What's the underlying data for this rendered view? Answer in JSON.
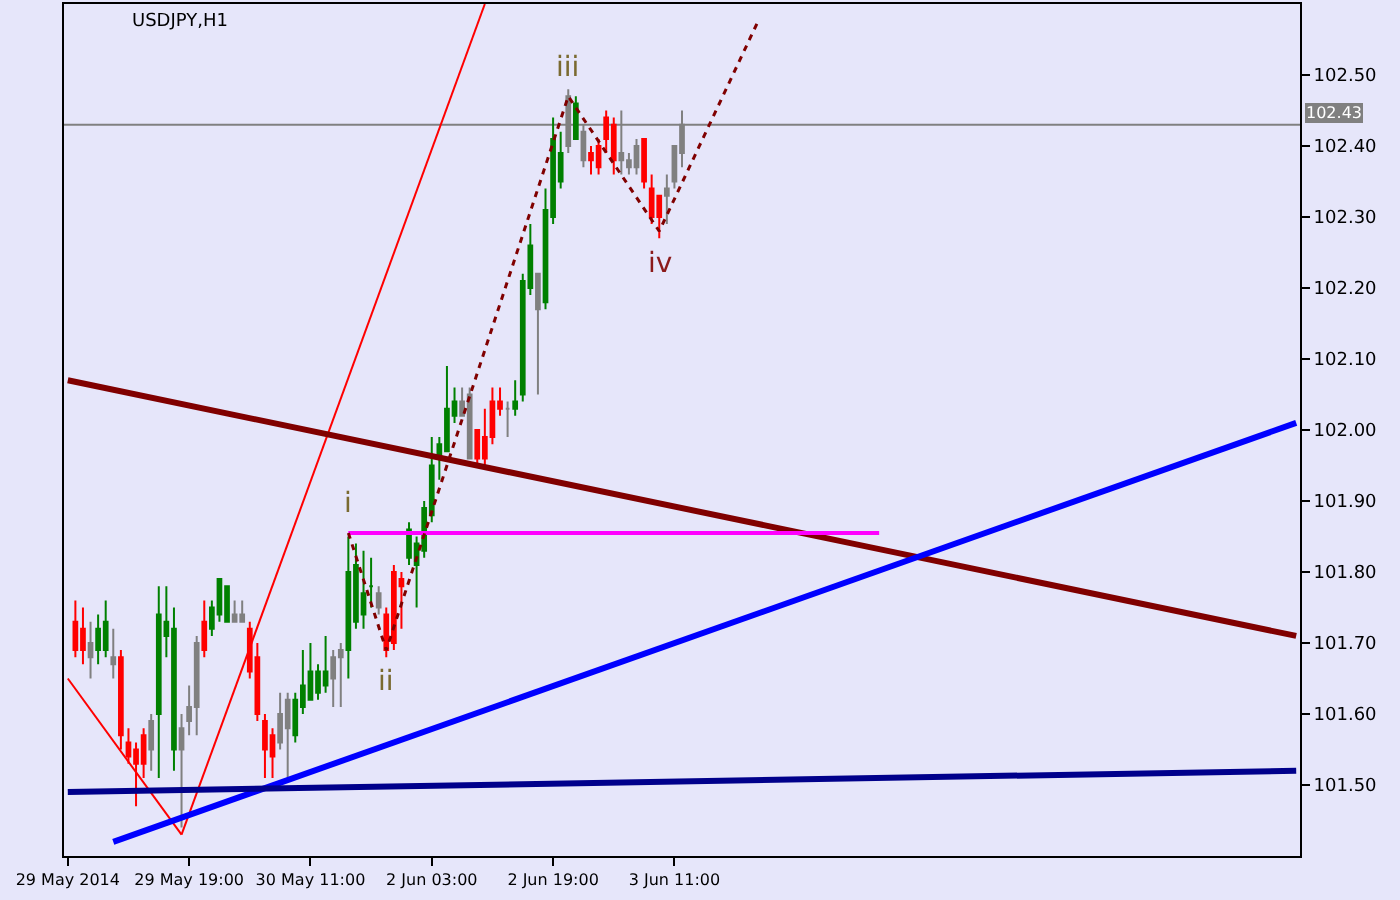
{
  "chart_data": {
    "type": "candlestick",
    "title": "USDJPY,H1",
    "categories": [
      "29 May 2014",
      null,
      null,
      null,
      null,
      null,
      null,
      null,
      null,
      null,
      null,
      null,
      null,
      null,
      null,
      null,
      "29 May 19:00",
      null,
      null,
      null,
      null,
      null,
      null,
      null,
      null,
      null,
      null,
      null,
      null,
      null,
      null,
      null,
      "30 May 11:00",
      null,
      null,
      null,
      null,
      null,
      null,
      null,
      null,
      null,
      null,
      null,
      null,
      null,
      null,
      null,
      "2 Jun 03:00",
      null,
      null,
      null,
      null,
      null,
      null,
      null,
      null,
      null,
      null,
      null,
      null,
      null,
      null,
      null,
      "2 Jun 19:00",
      null,
      null,
      null,
      null,
      null,
      null,
      null,
      null,
      null,
      null,
      null,
      null,
      null,
      null,
      null,
      "3 Jun 11:00",
      null,
      null,
      null,
      null,
      null,
      null,
      null,
      null,
      null,
      null,
      null,
      null,
      null,
      null,
      null,
      null,
      null,
      null,
      null,
      null,
      null,
      null,
      null,
      null,
      null,
      null,
      null,
      null,
      null,
      null,
      null,
      null,
      null,
      null,
      null,
      null,
      null,
      null,
      null,
      null,
      null,
      null,
      null,
      null,
      null,
      null,
      null,
      null,
      null,
      null,
      null,
      null,
      null,
      null,
      null,
      null,
      null,
      null,
      null,
      null,
      null,
      null,
      null,
      null,
      null,
      null,
      null,
      null,
      null,
      null,
      null,
      null,
      null,
      null,
      null,
      null,
      null,
      null,
      null,
      null,
      null,
      null
    ],
    "ohlc": [
      null,
      [
        101.73,
        101.76,
        101.68,
        101.69
      ],
      [
        101.72,
        101.75,
        101.67,
        101.69
      ],
      [
        101.68,
        101.73,
        101.65,
        101.7
      ],
      [
        101.69,
        101.74,
        101.67,
        101.72
      ],
      [
        101.69,
        101.76,
        101.68,
        101.73
      ],
      [
        101.67,
        101.72,
        101.65,
        101.68
      ],
      [
        101.68,
        101.69,
        101.55,
        101.57
      ],
      [
        101.56,
        101.58,
        101.53,
        101.54
      ],
      [
        101.55,
        101.56,
        101.47,
        101.53
      ],
      [
        101.57,
        101.58,
        101.51,
        101.53
      ],
      [
        101.55,
        101.6,
        101.52,
        101.59
      ],
      [
        101.6,
        101.78,
        101.51,
        101.74
      ],
      [
        101.71,
        101.78,
        101.68,
        101.73
      ],
      [
        101.55,
        101.75,
        101.52,
        101.72
      ],
      [
        101.55,
        101.6,
        101.44,
        101.58
      ],
      [
        101.59,
        101.64,
        101.57,
        101.61
      ],
      [
        101.61,
        101.71,
        101.57,
        101.7
      ],
      [
        101.73,
        101.76,
        101.68,
        101.69
      ],
      [
        101.72,
        101.76,
        101.71,
        101.75
      ],
      [
        101.74,
        101.79,
        101.73,
        101.79
      ],
      [
        101.73,
        101.78,
        101.73,
        101.78
      ],
      [
        101.73,
        101.76,
        101.73,
        101.74
      ],
      [
        101.73,
        101.76,
        101.73,
        101.74
      ],
      [
        101.72,
        101.73,
        101.65,
        101.66
      ],
      [
        101.68,
        101.7,
        101.59,
        101.6
      ],
      [
        101.59,
        101.6,
        101.51,
        101.55
      ],
      [
        101.57,
        101.58,
        101.51,
        101.54
      ],
      [
        101.56,
        101.63,
        101.55,
        101.6
      ],
      [
        101.58,
        101.63,
        101.51,
        101.62
      ],
      [
        101.57,
        101.63,
        101.56,
        101.62
      ],
      [
        101.61,
        101.69,
        101.6,
        101.64
      ],
      [
        101.62,
        101.7,
        101.62,
        101.66
      ],
      [
        101.63,
        101.67,
        101.62,
        101.66
      ],
      [
        101.64,
        101.71,
        101.63,
        101.66
      ],
      [
        101.65,
        101.69,
        101.61,
        101.68
      ],
      [
        101.68,
        101.7,
        101.61,
        101.69
      ],
      [
        101.69,
        101.85,
        101.65,
        101.8
      ],
      [
        101.73,
        101.84,
        101.72,
        101.81
      ],
      [
        101.74,
        101.83,
        101.72,
        101.77
      ],
      [
        101.78,
        101.82,
        101.75,
        101.78
      ],
      [
        101.75,
        101.78,
        101.74,
        101.77
      ],
      [
        101.74,
        101.75,
        101.68,
        101.69
      ],
      [
        101.8,
        101.81,
        101.69,
        101.7
      ],
      [
        101.79,
        101.8,
        101.72,
        101.78
      ],
      [
        101.82,
        101.87,
        101.81,
        101.86
      ],
      [
        101.81,
        101.85,
        101.75,
        101.84
      ],
      [
        101.83,
        101.9,
        101.82,
        101.89
      ],
      [
        101.88,
        101.99,
        101.87,
        101.95
      ],
      [
        101.96,
        101.99,
        101.93,
        101.98
      ],
      [
        101.97,
        102.09,
        101.97,
        102.03
      ],
      [
        102.02,
        102.06,
        102.01,
        102.04
      ],
      [
        102.02,
        102.06,
        102.02,
        102.04
      ],
      [
        101.96,
        102.06,
        101.96,
        102.05
      ],
      [
        102.0,
        102.0,
        101.95,
        101.96
      ],
      [
        101.99,
        102.03,
        101.95,
        101.96
      ],
      [
        102.04,
        102.06,
        101.98,
        101.99
      ],
      [
        102.04,
        102.06,
        102.02,
        102.03
      ],
      [
        102.03,
        102.04,
        101.99,
        102.03
      ],
      [
        102.03,
        102.07,
        102.02,
        102.04
      ],
      [
        102.05,
        102.22,
        102.04,
        102.21
      ],
      [
        102.2,
        102.29,
        102.19,
        102.26
      ],
      [
        102.17,
        102.22,
        102.05,
        102.22
      ],
      [
        102.18,
        102.34,
        102.17,
        102.31
      ],
      [
        102.3,
        102.44,
        102.29,
        102.41
      ],
      [
        102.35,
        102.42,
        102.34,
        102.39
      ],
      [
        102.4,
        102.48,
        102.39,
        102.47
      ],
      [
        102.41,
        102.47,
        102.41,
        102.46
      ],
      [
        102.38,
        102.43,
        102.37,
        102.42
      ],
      [
        102.39,
        102.4,
        102.36,
        102.38
      ],
      [
        102.4,
        102.41,
        102.36,
        102.37
      ],
      [
        102.44,
        102.45,
        102.39,
        102.41
      ],
      [
        102.43,
        102.44,
        102.36,
        102.38
      ],
      [
        102.38,
        102.45,
        102.36,
        102.39
      ],
      [
        102.37,
        102.39,
        102.36,
        102.38
      ],
      [
        102.37,
        102.41,
        102.36,
        102.4
      ],
      [
        102.41,
        102.41,
        102.34,
        102.35
      ],
      [
        102.34,
        102.36,
        102.29,
        102.3
      ],
      [
        102.33,
        102.33,
        102.27,
        102.3
      ],
      [
        102.33,
        102.36,
        102.29,
        102.34
      ],
      [
        102.35,
        102.4,
        102.34,
        102.4
      ],
      [
        102.39,
        102.45,
        102.37,
        102.43
      ],
      null,
      null,
      null,
      null,
      null,
      null,
      null,
      null,
      null,
      null,
      null,
      null,
      null,
      null,
      null,
      null,
      null,
      null,
      null,
      null,
      null,
      null,
      null,
      null,
      null,
      null,
      null,
      null,
      null,
      null,
      null,
      null,
      null,
      null,
      null,
      null,
      null,
      null,
      null,
      null,
      null,
      null,
      null,
      null,
      null,
      null,
      null,
      null,
      null,
      null,
      null,
      null,
      null,
      null,
      null,
      null,
      null,
      null,
      null,
      null,
      null,
      null,
      null,
      null,
      null,
      null,
      null,
      null,
      null,
      null,
      null,
      null,
      null,
      null,
      null,
      null,
      null,
      null,
      null,
      null,
      null
    ],
    "colors": [
      null,
      "#ff0000",
      "#ff0000",
      "#808080",
      "#008000",
      "#008000",
      "#808080",
      "#ff0000",
      "#ff0000",
      "#ff0000",
      "#ff0000",
      "#808080",
      "#008000",
      "#008000",
      "#008000",
      "#808080",
      "#808080",
      "#808080",
      "#ff0000",
      "#008000",
      "#008000",
      "#008000",
      "#808080",
      "#808080",
      "#ff0000",
      "#ff0000",
      "#ff0000",
      "#ff0000",
      "#808080",
      "#808080",
      "#008000",
      "#008000",
      "#008000",
      "#008000",
      "#008000",
      "#808080",
      "#808080",
      "#008000",
      "#008000",
      "#008000",
      "#008000",
      "#808080",
      "#ff0000",
      "#ff0000",
      "#ff0000",
      "#008000",
      "#008000",
      "#008000",
      "#008000",
      "#008000",
      "#008000",
      "#008000",
      "#808080",
      "#808080",
      "#ff0000",
      "#ff0000",
      "#ff0000",
      "#ff0000",
      "#808080",
      "#008000",
      "#008000",
      "#008000",
      "#808080",
      "#008000",
      "#008000",
      "#008000",
      "#808080",
      "#008000",
      "#808080",
      "#ff0000",
      "#ff0000",
      "#ff0000",
      "#ff0000",
      "#808080",
      "#808080",
      "#808080",
      "#ff0000",
      "#ff0000",
      "#ff0000",
      "#808080",
      "#808080",
      "#808080",
      null,
      null,
      null,
      null,
      null,
      null,
      null,
      null,
      null,
      null,
      null,
      null,
      null,
      null,
      null,
      null,
      null,
      null,
      null,
      null,
      null,
      null,
      null,
      null,
      null,
      null,
      null,
      null,
      null,
      null,
      null,
      null,
      null,
      null,
      null,
      null,
      null,
      null,
      null,
      null,
      null,
      null,
      null,
      null,
      null,
      null,
      null,
      null,
      null,
      null,
      null,
      null,
      null,
      null,
      null,
      null,
      null,
      null,
      null,
      null,
      null,
      null,
      null,
      null,
      null,
      null,
      null,
      null,
      null,
      null,
      null,
      null,
      null,
      null,
      null,
      null,
      null,
      null,
      null,
      null,
      null
    ],
    "series": [
      {
        "type": "line",
        "color": "#ff0000",
        "values": [
          101.65,
          null,
          null,
          null,
          null,
          null,
          null,
          null,
          null,
          null,
          null,
          null,
          null,
          null,
          null,
          101.43,
          null,
          null,
          null,
          null,
          null,
          null,
          null,
          null,
          null,
          null,
          null,
          null,
          null,
          null,
          null,
          null,
          null,
          null,
          null,
          null,
          null,
          null,
          null,
          null,
          null,
          null,
          null,
          null,
          null,
          null,
          null,
          null,
          null,
          null,
          null,
          null,
          null,
          null,
          null,
          null,
          null,
          null,
          null,
          null,
          null,
          null,
          null,
          null,
          null,
          null,
          null,
          null,
          null,
          null,
          null,
          null,
          null,
          null,
          null,
          null,
          null,
          null,
          null,
          null,
          null,
          null,
          null,
          null,
          null,
          null,
          null,
          null,
          null,
          null,
          null,
          null,
          null,
          null,
          null,
          null,
          null,
          null,
          null,
          null,
          null,
          null,
          null,
          null,
          null,
          null,
          null,
          null,
          null,
          null,
          null,
          null,
          null,
          null,
          null,
          null,
          null,
          null,
          null,
          null,
          null,
          null,
          null,
          null,
          null,
          null,
          null,
          null,
          null,
          null,
          null,
          null,
          null,
          null,
          null,
          null,
          null,
          null,
          null,
          null,
          null,
          null,
          null,
          null,
          null,
          null,
          null,
          null,
          null,
          null,
          null,
          null,
          null,
          null,
          null,
          null,
          null,
          null,
          null,
          null,
          null,
          null,
          null
        ]
      },
      {
        "type": "line",
        "color": "#ff0000",
        "values": [
          null,
          null,
          null,
          null,
          null,
          null,
          null,
          null,
          null,
          null,
          null,
          null,
          null,
          null,
          null,
          101.43,
          null,
          null,
          null,
          null,
          null,
          null,
          null,
          null,
          null,
          null,
          null,
          null,
          null,
          null,
          null,
          null,
          null,
          null,
          null,
          null,
          null,
          null,
          null,
          null,
          null,
          null,
          null,
          null,
          null,
          null,
          null,
          null,
          null,
          null,
          null,
          null,
          null,
          null,
          null,
          102.6,
          null,
          null,
          null,
          null,
          null,
          null,
          null,
          null,
          null,
          null,
          null,
          null,
          null,
          null,
          null,
          null,
          null,
          null,
          null,
          null,
          null,
          null,
          null,
          null,
          null,
          null,
          null,
          null,
          null,
          null,
          null,
          null,
          null,
          null,
          null,
          null,
          null,
          null,
          null,
          null,
          null,
          null,
          null,
          null,
          null,
          null,
          null,
          null,
          null,
          null,
          null,
          null,
          null,
          null,
          null,
          null,
          null,
          null,
          null,
          null,
          null,
          null,
          null,
          null,
          null,
          null,
          null,
          null,
          null,
          null,
          null,
          null,
          null,
          null,
          null,
          null,
          null,
          null,
          null,
          null,
          null,
          null,
          null,
          null,
          null,
          null,
          null,
          null,
          null,
          null,
          null,
          null,
          null,
          null,
          null,
          null,
          null,
          null,
          null,
          null,
          null,
          null,
          null,
          null,
          null,
          null,
          null
        ]
      },
      {
        "type": "line",
        "color": "#800000",
        "values": [
          102.07,
          null,
          null,
          null,
          null,
          null,
          null,
          null,
          null,
          null,
          null,
          null,
          null,
          null,
          null,
          null,
          null,
          null,
          null,
          null,
          null,
          null,
          null,
          null,
          null,
          null,
          null,
          null,
          null,
          null,
          null,
          null,
          null,
          null,
          null,
          null,
          null,
          null,
          null,
          null,
          null,
          null,
          null,
          null,
          null,
          null,
          null,
          null,
          null,
          null,
          null,
          null,
          null,
          null,
          null,
          null,
          null,
          null,
          null,
          null,
          null,
          null,
          null,
          null,
          null,
          null,
          null,
          null,
          null,
          null,
          null,
          null,
          null,
          null,
          null,
          null,
          null,
          null,
          null,
          null,
          null,
          null,
          null,
          null,
          null,
          null,
          null,
          null,
          null,
          null,
          null,
          null,
          null,
          null,
          null,
          null,
          null,
          null,
          null,
          null,
          null,
          null,
          null,
          null,
          null,
          null,
          null,
          null,
          null,
          null,
          null,
          null,
          null,
          null,
          null,
          null,
          null,
          null,
          null,
          null,
          null,
          null,
          null,
          null,
          null,
          null,
          null,
          null,
          null,
          null,
          null,
          null,
          null,
          null,
          null,
          null,
          null,
          null,
          null,
          null,
          null,
          null,
          null,
          null,
          null,
          null,
          null,
          null,
          null,
          null,
          null,
          null,
          null,
          null,
          null,
          null,
          null,
          null,
          null,
          null,
          null,
          null,
          101.71
        ]
      },
      {
        "type": "line",
        "color": "#0000ff",
        "values": [
          null,
          null,
          null,
          null,
          null,
          null,
          101.42,
          null,
          null,
          null,
          null,
          null,
          null,
          null,
          null,
          null,
          null,
          null,
          null,
          null,
          null,
          null,
          null,
          null,
          null,
          null,
          null,
          null,
          null,
          null,
          null,
          null,
          null,
          null,
          null,
          null,
          null,
          null,
          null,
          null,
          null,
          null,
          null,
          null,
          null,
          null,
          null,
          null,
          null,
          null,
          null,
          null,
          null,
          null,
          null,
          null,
          null,
          null,
          null,
          null,
          null,
          null,
          null,
          null,
          null,
          null,
          null,
          null,
          null,
          null,
          null,
          null,
          null,
          null,
          null,
          null,
          null,
          null,
          null,
          null,
          null,
          null,
          null,
          null,
          null,
          null,
          null,
          null,
          null,
          null,
          null,
          null,
          null,
          null,
          null,
          null,
          null,
          null,
          null,
          null,
          null,
          null,
          null,
          null,
          null,
          null,
          null,
          null,
          null,
          null,
          null,
          null,
          null,
          null,
          null,
          null,
          null,
          null,
          null,
          null,
          null,
          null,
          null,
          null,
          null,
          null,
          null,
          null,
          null,
          null,
          null,
          null,
          null,
          null,
          null,
          null,
          null,
          null,
          null,
          null,
          null,
          null,
          null,
          null,
          null,
          null,
          null,
          null,
          null,
          null,
          null,
          null,
          null,
          null,
          null,
          null,
          null,
          null,
          null,
          null,
          null,
          null,
          102.01
        ]
      },
      {
        "type": "line",
        "color": "#00008b",
        "values": [
          101.49,
          null,
          null,
          null,
          null,
          null,
          null,
          null,
          null,
          null,
          null,
          null,
          null,
          null,
          null,
          null,
          null,
          null,
          null,
          null,
          null,
          null,
          null,
          null,
          null,
          null,
          null,
          null,
          null,
          null,
          null,
          null,
          null,
          null,
          null,
          null,
          null,
          null,
          null,
          null,
          null,
          null,
          null,
          null,
          null,
          null,
          null,
          null,
          null,
          null,
          null,
          null,
          null,
          null,
          null,
          null,
          null,
          null,
          null,
          null,
          null,
          null,
          null,
          null,
          null,
          null,
          null,
          null,
          null,
          null,
          null,
          null,
          null,
          null,
          null,
          null,
          null,
          null,
          null,
          null,
          null,
          null,
          null,
          null,
          null,
          null,
          null,
          null,
          null,
          null,
          null,
          null,
          null,
          null,
          null,
          null,
          null,
          null,
          null,
          null,
          null,
          null,
          null,
          null,
          null,
          null,
          null,
          null,
          null,
          null,
          null,
          null,
          null,
          null,
          null,
          null,
          null,
          null,
          null,
          null,
          null,
          null,
          null,
          null,
          null,
          null,
          null,
          null,
          null,
          null,
          null,
          null,
          null,
          null,
          null,
          null,
          null,
          null,
          null,
          null,
          null,
          null,
          null,
          null,
          null,
          null,
          null,
          null,
          null,
          null,
          null,
          null,
          null,
          null,
          null,
          null,
          null,
          null,
          null,
          null,
          null,
          null,
          101.52
        ]
      },
      {
        "type": "line",
        "color": "#ff00ff",
        "values": [
          null,
          null,
          null,
          null,
          null,
          null,
          null,
          null,
          null,
          null,
          null,
          null,
          null,
          null,
          null,
          null,
          null,
          null,
          null,
          null,
          null,
          null,
          null,
          null,
          null,
          null,
          null,
          null,
          null,
          null,
          null,
          null,
          null,
          null,
          null,
          null,
          null,
          101.855,
          null,
          null,
          null,
          null,
          null,
          null,
          null,
          null,
          null,
          null,
          null,
          null,
          null,
          null,
          null,
          null,
          null,
          null,
          null,
          null,
          null,
          null,
          null,
          null,
          null,
          null,
          null,
          null,
          null,
          null,
          null,
          null,
          null,
          null,
          null,
          null,
          null,
          null,
          null,
          null,
          null,
          null,
          null,
          null,
          null,
          null,
          null,
          null,
          null,
          null,
          null,
          null,
          null,
          null,
          null,
          null,
          null,
          null,
          null,
          null,
          null,
          null,
          null,
          null,
          null,
          null,
          null,
          null,
          null,
          101.855,
          null,
          null,
          null,
          null,
          null,
          null,
          null,
          null,
          null,
          null,
          null,
          null,
          null,
          null,
          null,
          null,
          null,
          null,
          null,
          null,
          null,
          null,
          null,
          null,
          null,
          null,
          null,
          null,
          null,
          null,
          null,
          null,
          null,
          null,
          null,
          null,
          null,
          null,
          null,
          null,
          null,
          null,
          null,
          null,
          null,
          null,
          null,
          null,
          null,
          null,
          null,
          null,
          null,
          null,
          null
        ]
      },
      {
        "type": "line",
        "color": "#800000",
        "line_style": "dotted",
        "values": [
          null,
          null,
          null,
          null,
          null,
          null,
          null,
          null,
          null,
          null,
          null,
          null,
          null,
          null,
          null,
          null,
          null,
          null,
          null,
          null,
          null,
          null,
          null,
          null,
          null,
          null,
          null,
          null,
          null,
          null,
          null,
          null,
          null,
          null,
          null,
          null,
          null,
          101.855,
          null,
          null,
          null,
          null,
          101.69,
          null,
          null,
          null,
          null,
          null,
          null,
          null,
          null,
          null,
          null,
          null,
          null,
          null,
          null,
          null,
          null,
          null,
          null,
          null,
          null,
          null,
          null,
          null,
          102.47,
          null,
          null,
          null,
          null,
          null,
          null,
          null,
          null,
          null,
          null,
          null,
          102.28,
          null,
          null,
          null,
          null,
          null,
          null,
          null,
          null,
          null,
          null,
          null,
          null,
          102.575,
          null,
          null,
          null,
          null,
          null,
          null,
          null,
          null,
          null,
          null,
          null,
          null,
          null,
          null,
          null,
          null,
          null,
          null,
          null,
          null,
          null,
          null,
          null,
          null,
          null,
          null,
          null,
          null,
          null,
          null,
          null,
          null,
          null,
          null,
          null,
          null,
          null,
          null,
          null,
          null,
          null,
          null,
          null,
          null,
          null,
          null,
          null,
          null,
          null,
          null,
          null,
          null,
          null,
          null,
          null,
          null,
          null,
          null,
          null,
          null,
          null,
          null,
          null,
          null,
          null,
          null,
          null,
          null,
          null,
          null,
          null
        ]
      }
    ],
    "annotations": [
      "i",
      "ii",
      "iii",
      "iv"
    ],
    "ref_lines": [
      {
        "axis": "y",
        "value": 102.43,
        "label": "102.43",
        "color": "#808080"
      }
    ],
    "ylim": [
      101.4,
      102.6
    ],
    "yticks": [
      {
        "value": 101.5,
        "label": "101.50"
      },
      {
        "value": 101.6,
        "label": "101.60"
      },
      {
        "value": 101.7,
        "label": "101.70"
      },
      {
        "value": 101.8,
        "label": "101.80"
      },
      {
        "value": 101.9,
        "label": "101.90"
      },
      {
        "value": 102.0,
        "label": "102.00"
      },
      {
        "value": 102.1,
        "label": "102.10"
      },
      {
        "value": 102.2,
        "label": "102.20"
      },
      {
        "value": 102.3,
        "label": "102.30"
      },
      {
        "value": 102.4,
        "label": "102.40"
      },
      {
        "value": 102.5,
        "label": "102.50"
      }
    ],
    "grid": false
  }
}
